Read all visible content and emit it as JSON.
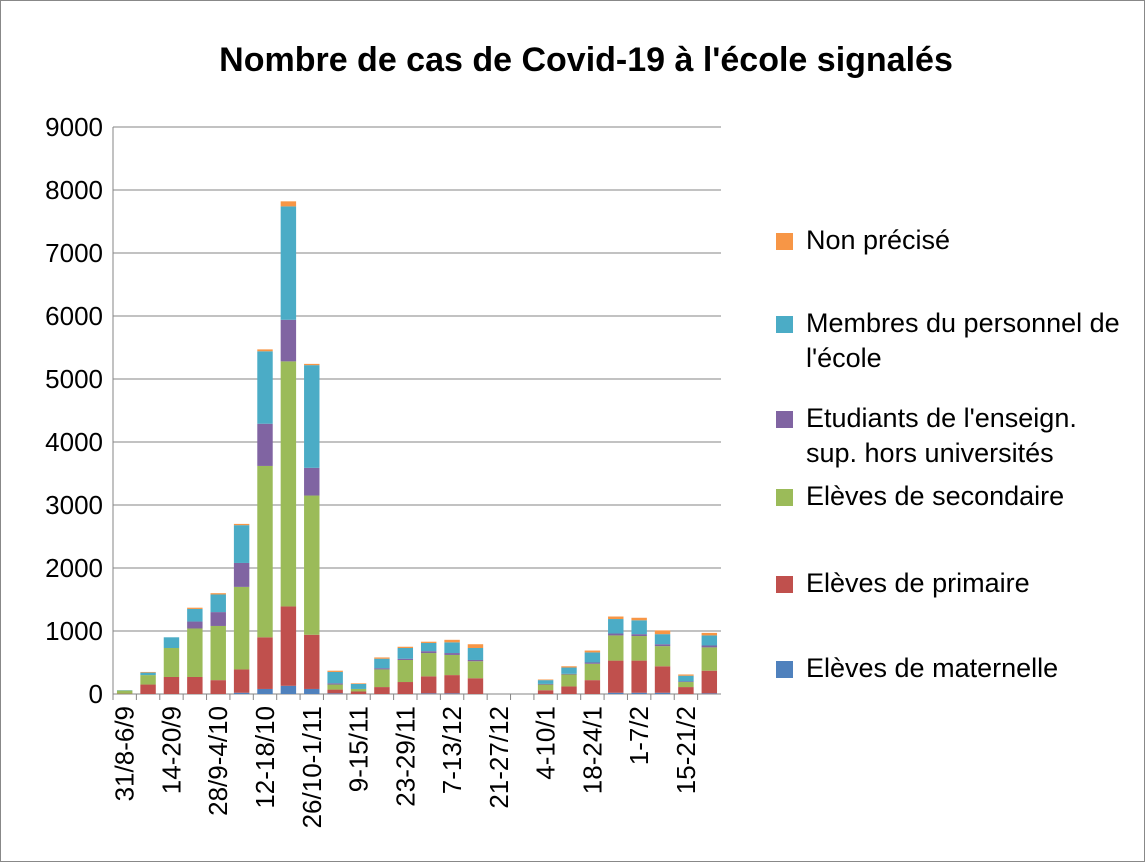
{
  "chart_data": {
    "type": "bar",
    "stacked": true,
    "title": "Nombre de cas de Covid-19 à l'école signalés",
    "categories": [
      "31/8-6/9",
      null,
      "14-20/9",
      null,
      "28/9-4/10",
      null,
      "12-18/10",
      null,
      "26/10-1/11",
      null,
      "9-15/11",
      null,
      "23-29/11",
      null,
      "7-13/12",
      null,
      "21-27/12",
      null,
      "4-10/1",
      null,
      "18-24/1",
      null,
      "1-7/2",
      null,
      "15-21/2",
      null
    ],
    "series": [
      {
        "name": "Elèves de maternelle",
        "color": "#4f81bd",
        "values": [
          0,
          0,
          0,
          0,
          0,
          20,
          80,
          130,
          80,
          10,
          0,
          0,
          0,
          10,
          10,
          0,
          0,
          0,
          0,
          0,
          0,
          20,
          20,
          20,
          0,
          10
        ]
      },
      {
        "name": "Elèves de primaire",
        "color": "#c0504d",
        "values": [
          5,
          150,
          270,
          270,
          220,
          370,
          820,
          1260,
          860,
          60,
          40,
          110,
          190,
          270,
          290,
          250,
          0,
          0,
          60,
          120,
          220,
          510,
          510,
          420,
          110,
          360
        ]
      },
      {
        "name": "Elèves de secondaire",
        "color": "#9bbb59",
        "values": [
          50,
          150,
          460,
          770,
          860,
          1310,
          2720,
          3890,
          2210,
          80,
          40,
          280,
          350,
          370,
          320,
          270,
          0,
          0,
          90,
          190,
          260,
          400,
          390,
          320,
          80,
          370
        ]
      },
      {
        "name": "Etudiants de l'enseign. sup. hors universités",
        "color": "#8064a2",
        "values": [
          0,
          0,
          0,
          110,
          220,
          380,
          670,
          660,
          440,
          20,
          0,
          20,
          20,
          30,
          30,
          20,
          0,
          0,
          10,
          10,
          20,
          30,
          30,
          30,
          10,
          30
        ]
      },
      {
        "name": "Membres du personnel de l'école",
        "color": "#4bacc6",
        "values": [
          5,
          40,
          170,
          200,
          280,
          600,
          1150,
          1800,
          1630,
          180,
          80,
          150,
          170,
          130,
          170,
          190,
          0,
          0,
          60,
          100,
          160,
          230,
          220,
          160,
          90,
          160
        ]
      },
      {
        "name": "Non précisé",
        "color": "#f79646",
        "values": [
          0,
          10,
          0,
          20,
          20,
          20,
          30,
          80,
          20,
          20,
          10,
          20,
          20,
          20,
          40,
          60,
          0,
          0,
          10,
          20,
          30,
          40,
          40,
          60,
          20,
          40
        ]
      }
    ],
    "ylim": [
      0,
      9000
    ],
    "yticks": [
      0,
      1000,
      2000,
      3000,
      4000,
      5000,
      6000,
      7000,
      8000,
      9000
    ],
    "grid": true,
    "legend": "right"
  }
}
